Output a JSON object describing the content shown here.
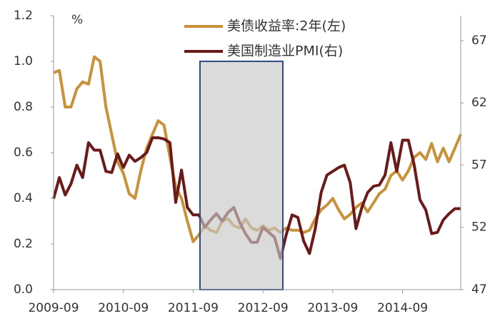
{
  "chart_data": {
    "type": "line",
    "annotation": "%",
    "categories": [
      "2009-09",
      null,
      null,
      null,
      null,
      null,
      null,
      null,
      null,
      null,
      null,
      null,
      "2010-09",
      null,
      null,
      null,
      null,
      null,
      null,
      null,
      null,
      null,
      null,
      null,
      "2011-09",
      null,
      null,
      null,
      null,
      null,
      null,
      null,
      null,
      null,
      null,
      null,
      "2012-09",
      null,
      null,
      null,
      null,
      null,
      null,
      null,
      null,
      null,
      null,
      null,
      "2013-09",
      null,
      null,
      null,
      null,
      null,
      null,
      null,
      null,
      null,
      null,
      null,
      "2014-09",
      null,
      null,
      null,
      null,
      null,
      null,
      null,
      null,
      null,
      null
    ],
    "series": [
      {
        "name": "美债收益率:2年(左)",
        "color": "#c8923a",
        "axis": "y",
        "values": [
          0.95,
          0.96,
          0.8,
          0.8,
          0.88,
          0.91,
          0.9,
          1.02,
          1.0,
          0.8,
          0.68,
          0.56,
          0.51,
          0.42,
          0.4,
          0.52,
          0.62,
          0.68,
          0.74,
          0.72,
          0.58,
          0.45,
          0.4,
          0.3,
          0.21,
          0.24,
          0.28,
          0.26,
          0.25,
          0.3,
          0.31,
          0.28,
          0.27,
          0.31,
          0.27,
          0.26,
          0.28,
          0.26,
          0.27,
          0.25,
          0.27,
          0.26,
          0.26,
          0.25,
          0.26,
          0.31,
          0.35,
          0.37,
          0.4,
          0.35,
          0.31,
          0.33,
          0.36,
          0.38,
          0.34,
          0.38,
          0.42,
          0.44,
          0.5,
          0.52,
          0.48,
          0.52,
          0.58,
          0.6,
          0.57,
          0.64,
          0.56,
          0.62,
          0.56,
          0.62,
          0.68
        ]
      },
      {
        "name": "美国制造业PMI(右)",
        "color": "#6b1a1a",
        "axis": "y2",
        "values": [
          54.3,
          56,
          54.6,
          55.5,
          57,
          56,
          58.8,
          58.2,
          58.2,
          56.5,
          56.4,
          57.9,
          56.8,
          57.8,
          57.3,
          57.6,
          58,
          59.2,
          59.2,
          59.1,
          58.8,
          54,
          56.6,
          53.6,
          53,
          53,
          52,
          52.6,
          53.1,
          52.5,
          53.2,
          53.6,
          52.4,
          51.5,
          50.8,
          50.8,
          52,
          51.6,
          51.2,
          49.5,
          51.4,
          53,
          52.8,
          50.9,
          49.9,
          51.9,
          54.8,
          56.2,
          56.5,
          56.8,
          57,
          55.6,
          51.9,
          53.6,
          54.8,
          55.3,
          55.4,
          56.2,
          58.8,
          56.5,
          59,
          59,
          57,
          54.2,
          53.4,
          51.5,
          51.6,
          52.6,
          53.1,
          53.5,
          53.5
        ]
      }
    ],
    "ylim": [
      0,
      1.2
    ],
    "yticks": [
      {
        "value": 0,
        "label": "0.0"
      },
      0.2,
      0.4,
      0.6,
      0.8,
      {
        "value": 1,
        "label": "1.0"
      },
      1.2
    ],
    "y2lim": [
      47,
      69
    ],
    "y2ticks": [
      47,
      52,
      57,
      62,
      67
    ],
    "grid": false,
    "legend": "top"
  }
}
